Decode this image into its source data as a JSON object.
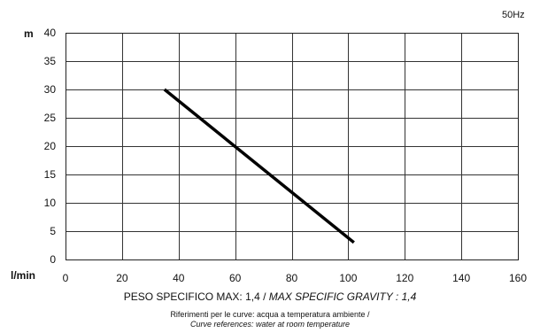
{
  "chart_data": {
    "type": "line",
    "frequency": "50Hz",
    "y_unit": "m",
    "x_unit": "l/min",
    "xlim": [
      0,
      160
    ],
    "ylim": [
      0,
      40
    ],
    "x_ticks": [
      0,
      20,
      40,
      60,
      80,
      100,
      120,
      140,
      160
    ],
    "y_ticks": [
      0,
      5,
      10,
      15,
      20,
      25,
      30,
      35,
      40
    ],
    "grid": true,
    "series": [
      {
        "color": "#000000",
        "x": [
          35,
          102
        ],
        "y": [
          30,
          3
        ]
      }
    ]
  },
  "footer": {
    "gravity_it": "PESO SPECIFICO MAX: 1,4 / ",
    "gravity_en": "MAX SPECIFIC GRAVITY : 1,4",
    "reference_it": "Riferimenti per le curve: acqua a temperatura ambiente /",
    "reference_en": "Curve references: water at room temperature"
  }
}
